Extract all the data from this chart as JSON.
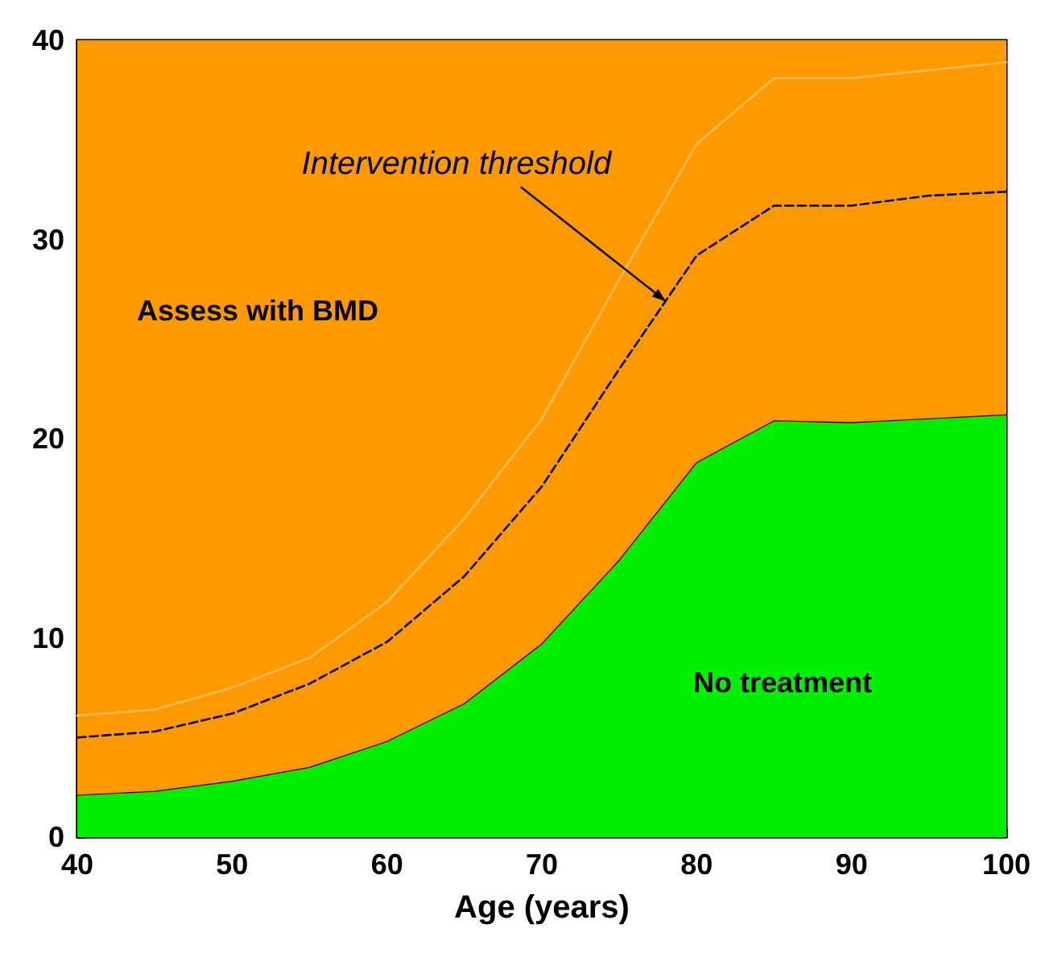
{
  "chart_data": {
    "type": "area",
    "xlabel": "Age (years)",
    "x": [
      40,
      45,
      50,
      55,
      60,
      65,
      70,
      75,
      80,
      85,
      90,
      95,
      100
    ],
    "xlim": [
      40,
      100
    ],
    "xticks": [
      40,
      50,
      60,
      70,
      80,
      90,
      100
    ],
    "ylim": [
      0,
      40
    ],
    "yticks": [
      0,
      10,
      20,
      30,
      40
    ],
    "grid": false,
    "marker": "none",
    "bands": [
      {
        "axis": "y",
        "from": 0,
        "to": 40,
        "color": "#ff9900"
      }
    ],
    "series": [
      {
        "color": "#00ee00",
        "values": [
          2.1,
          2.3,
          2.8,
          3.5,
          4.8,
          6.7,
          9.7,
          13.9,
          18.8,
          20.9,
          20.8,
          21.0,
          21.2
        ]
      },
      {
        "type": "line",
        "color": "#000000",
        "line_style": "dashed",
        "values": [
          5.0,
          5.3,
          6.2,
          7.7,
          9.8,
          13.1,
          17.6,
          23.5,
          29.2,
          31.7,
          31.7,
          32.2,
          32.4
        ]
      },
      {
        "type": "line",
        "color": "#ffbb55",
        "line_style": "solid",
        "values": [
          6.1,
          6.4,
          7.5,
          9.0,
          11.8,
          16.0,
          21.0,
          28.0,
          34.8,
          38.1,
          38.1,
          38.5,
          38.9
        ]
      }
    ],
    "annotations": [
      {
        "text": "Intervention threshold",
        "x": 78,
        "y": 26.9
      },
      "Assess with BMD",
      "No treatment"
    ]
  }
}
